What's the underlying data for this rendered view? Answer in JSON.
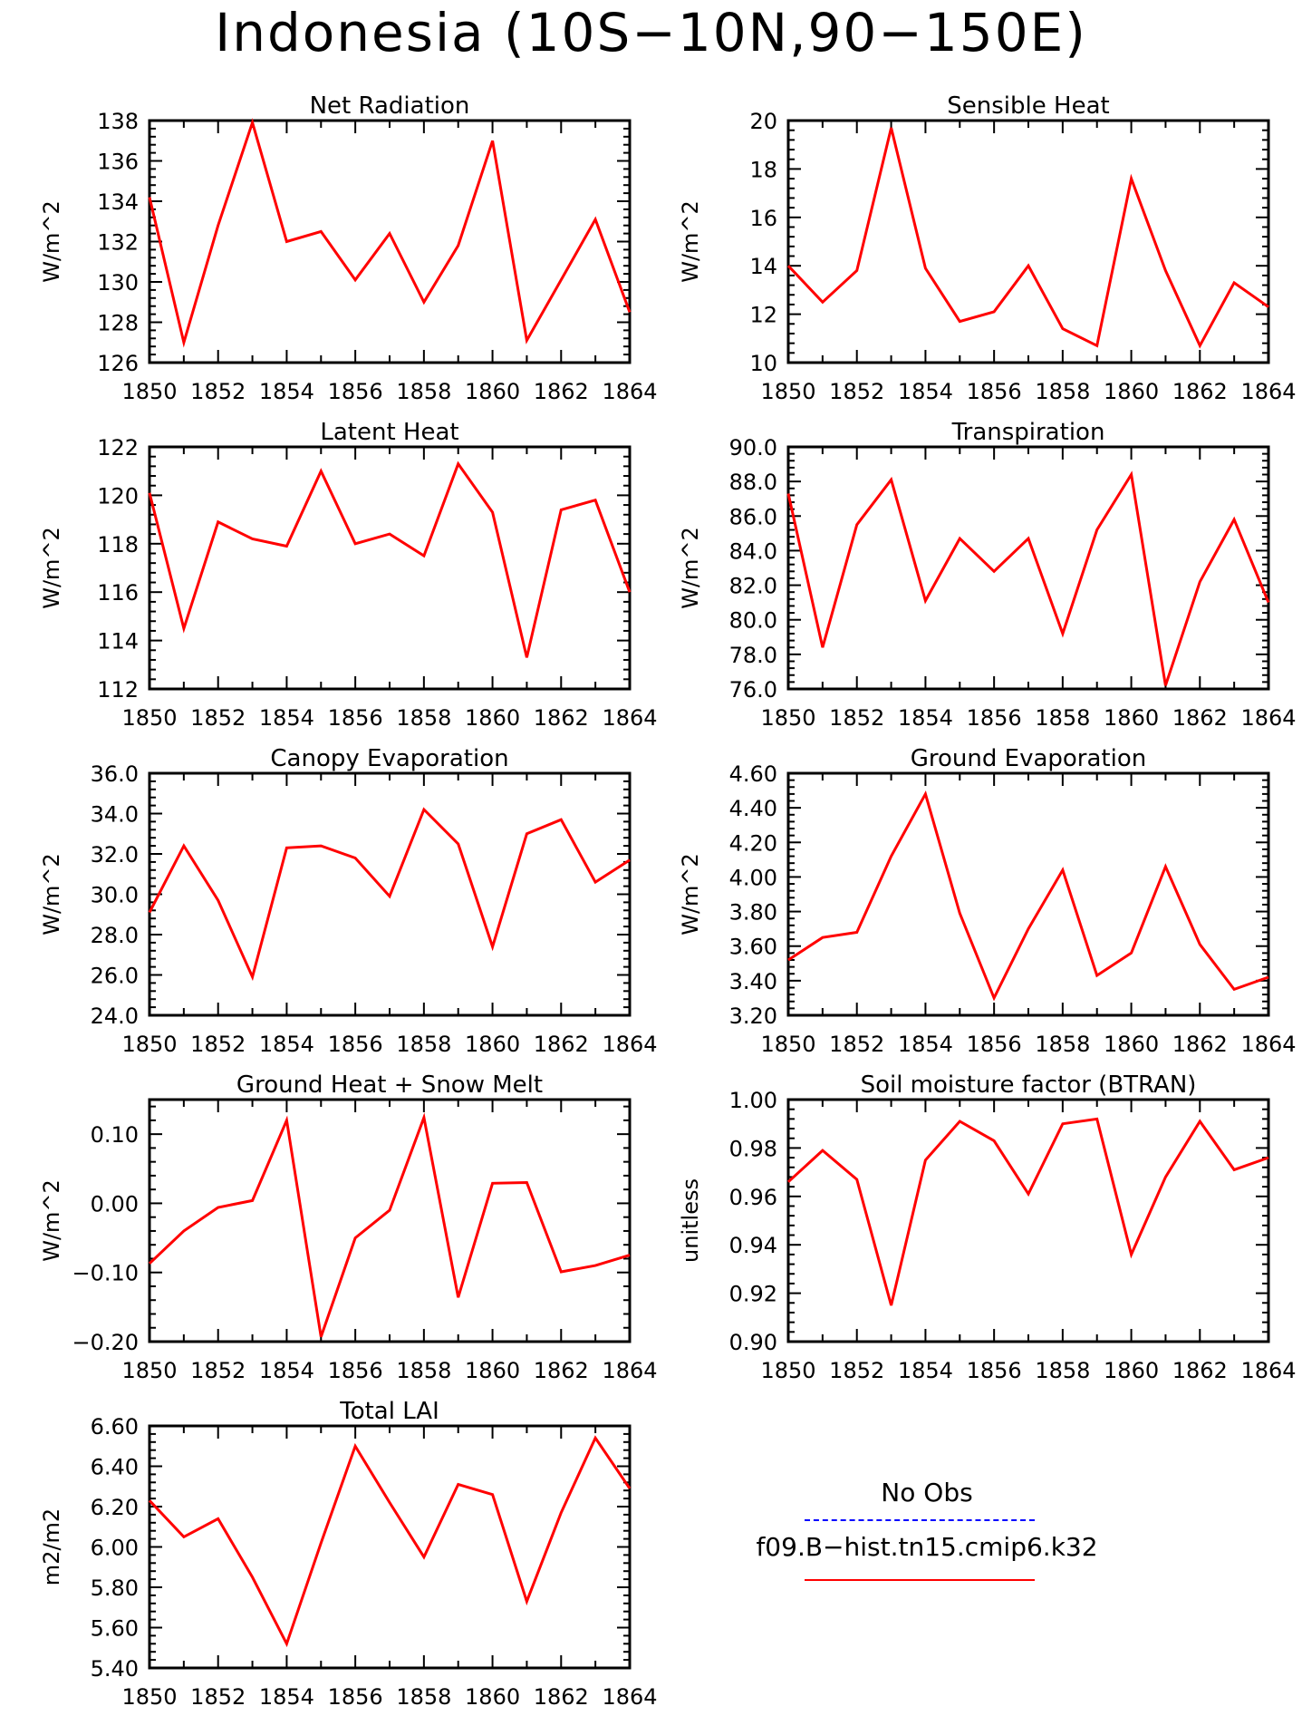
{
  "page": {
    "title": "Indonesia (10S−10N,90−150E)"
  },
  "legend": {
    "obs_label": "No Obs",
    "obs_color": "#0000ff",
    "model_label": "f09.B−hist.tn15.cmip6.k32",
    "model_color": "#ff0000"
  },
  "chart_data": [
    {
      "type": "line",
      "title": "Net Radiation",
      "xlabel": "",
      "ylabel": "W/m^2",
      "x": [
        1850,
        1851,
        1852,
        1853,
        1854,
        1855,
        1856,
        1857,
        1858,
        1859,
        1860,
        1861,
        1862,
        1863,
        1864
      ],
      "xlim": [
        1850,
        1864
      ],
      "xticks": [
        1850,
        1852,
        1854,
        1856,
        1858,
        1860,
        1862,
        1864
      ],
      "ylim": [
        126,
        138
      ],
      "yticks": [
        "126",
        "128",
        "130",
        "132",
        "134",
        "136",
        "138"
      ],
      "series": [
        {
          "values": [
            134.2,
            127.0,
            132.8,
            137.9,
            132.0,
            132.5,
            130.1,
            132.4,
            129.0,
            131.8,
            137.0,
            127.1,
            130.1,
            133.1,
            128.5
          ]
        }
      ]
    },
    {
      "type": "line",
      "title": "Sensible Heat",
      "xlabel": "",
      "ylabel": "W/m^2",
      "x": [
        1850,
        1851,
        1852,
        1853,
        1854,
        1855,
        1856,
        1857,
        1858,
        1859,
        1860,
        1861,
        1862,
        1863,
        1864
      ],
      "xlim": [
        1850,
        1864
      ],
      "xticks": [
        1850,
        1852,
        1854,
        1856,
        1858,
        1860,
        1862,
        1864
      ],
      "ylim": [
        10,
        20
      ],
      "yticks": [
        "10",
        "12",
        "14",
        "16",
        "18",
        "20"
      ],
      "series": [
        {
          "values": [
            14.0,
            12.5,
            13.8,
            19.7,
            13.9,
            11.7,
            12.1,
            14.0,
            11.4,
            10.7,
            17.6,
            13.8,
            10.7,
            13.3,
            12.3
          ]
        }
      ]
    },
    {
      "type": "line",
      "title": "Latent Heat",
      "xlabel": "",
      "ylabel": "W/m^2",
      "x": [
        1850,
        1851,
        1852,
        1853,
        1854,
        1855,
        1856,
        1857,
        1858,
        1859,
        1860,
        1861,
        1862,
        1863,
        1864
      ],
      "xlim": [
        1850,
        1864
      ],
      "xticks": [
        1850,
        1852,
        1854,
        1856,
        1858,
        1860,
        1862,
        1864
      ],
      "ylim": [
        112,
        122
      ],
      "yticks": [
        "112",
        "114",
        "116",
        "118",
        "120",
        "122"
      ],
      "series": [
        {
          "values": [
            120.1,
            114.5,
            118.9,
            118.2,
            117.9,
            121.0,
            118.0,
            118.4,
            117.5,
            121.3,
            119.3,
            113.3,
            119.4,
            119.8,
            116.0
          ]
        }
      ]
    },
    {
      "type": "line",
      "title": "Transpiration",
      "xlabel": "",
      "ylabel": "W/m^2",
      "x": [
        1850,
        1851,
        1852,
        1853,
        1854,
        1855,
        1856,
        1857,
        1858,
        1859,
        1860,
        1861,
        1862,
        1863,
        1864
      ],
      "xlim": [
        1850,
        1864
      ],
      "xticks": [
        1850,
        1852,
        1854,
        1856,
        1858,
        1860,
        1862,
        1864
      ],
      "ylim": [
        76,
        90
      ],
      "yticks": [
        "76.0",
        "78.0",
        "80.0",
        "82.0",
        "84.0",
        "86.0",
        "88.0",
        "90.0"
      ],
      "series": [
        {
          "values": [
            87.3,
            78.4,
            85.5,
            88.1,
            81.1,
            84.7,
            82.8,
            84.7,
            79.2,
            85.2,
            88.4,
            76.2,
            82.2,
            85.8,
            81.0
          ]
        }
      ]
    },
    {
      "type": "line",
      "title": "Canopy Evaporation",
      "xlabel": "",
      "ylabel": "W/m^2",
      "x": [
        1850,
        1851,
        1852,
        1853,
        1854,
        1855,
        1856,
        1857,
        1858,
        1859,
        1860,
        1861,
        1862,
        1863,
        1864
      ],
      "xlim": [
        1850,
        1864
      ],
      "xticks": [
        1850,
        1852,
        1854,
        1856,
        1858,
        1860,
        1862,
        1864
      ],
      "ylim": [
        24,
        36
      ],
      "yticks": [
        "24.0",
        "26.0",
        "28.0",
        "30.0",
        "32.0",
        "34.0",
        "36.0"
      ],
      "series": [
        {
          "values": [
            29.1,
            32.4,
            29.7,
            25.9,
            32.3,
            32.4,
            31.8,
            29.9,
            34.2,
            32.5,
            27.4,
            33.0,
            33.7,
            30.6,
            31.7
          ]
        }
      ]
    },
    {
      "type": "line",
      "title": "Ground Evaporation",
      "xlabel": "",
      "ylabel": "W/m^2",
      "x": [
        1850,
        1851,
        1852,
        1853,
        1854,
        1855,
        1856,
        1857,
        1858,
        1859,
        1860,
        1861,
        1862,
        1863,
        1864
      ],
      "xlim": [
        1850,
        1864
      ],
      "xticks": [
        1850,
        1852,
        1854,
        1856,
        1858,
        1860,
        1862,
        1864
      ],
      "ylim": [
        3.2,
        4.6
      ],
      "yticks": [
        "3.20",
        "3.40",
        "3.60",
        "3.80",
        "4.00",
        "4.20",
        "4.40",
        "4.60"
      ],
      "series": [
        {
          "values": [
            3.52,
            3.65,
            3.68,
            4.12,
            4.48,
            3.79,
            3.3,
            3.7,
            4.04,
            3.43,
            3.56,
            4.06,
            3.61,
            3.35,
            3.42
          ]
        }
      ]
    },
    {
      "type": "line",
      "title": "Ground Heat + Snow Melt",
      "xlabel": "",
      "ylabel": "W/m^2",
      "x": [
        1850,
        1851,
        1852,
        1853,
        1854,
        1855,
        1856,
        1857,
        1858,
        1859,
        1860,
        1861,
        1862,
        1863,
        1864
      ],
      "xlim": [
        1850,
        1864
      ],
      "xticks": [
        1850,
        1852,
        1854,
        1856,
        1858,
        1860,
        1862,
        1864
      ],
      "ylim": [
        -0.2,
        0.15
      ],
      "yticks": [
        "−0.20",
        "−0.10",
        "0.00",
        "0.10"
      ],
      "ytick_values": [
        -0.2,
        -0.1,
        0.0,
        0.1
      ],
      "series": [
        {
          "values": [
            -0.087,
            -0.04,
            -0.006,
            0.004,
            0.12,
            -0.193,
            -0.05,
            -0.01,
            0.124,
            -0.136,
            0.029,
            0.03,
            -0.099,
            -0.09,
            -0.075
          ]
        }
      ]
    },
    {
      "type": "line",
      "title": "Soil moisture factor (BTRAN)",
      "xlabel": "",
      "ylabel": "unitless",
      "x": [
        1850,
        1851,
        1852,
        1853,
        1854,
        1855,
        1856,
        1857,
        1858,
        1859,
        1860,
        1861,
        1862,
        1863,
        1864
      ],
      "xlim": [
        1850,
        1864
      ],
      "xticks": [
        1850,
        1852,
        1854,
        1856,
        1858,
        1860,
        1862,
        1864
      ],
      "ylim": [
        0.9,
        1.0
      ],
      "yticks": [
        "0.90",
        "0.92",
        "0.94",
        "0.96",
        "0.98",
        "1.00"
      ],
      "series": [
        {
          "values": [
            0.966,
            0.979,
            0.967,
            0.915,
            0.975,
            0.991,
            0.983,
            0.961,
            0.99,
            0.992,
            0.936,
            0.968,
            0.991,
            0.971,
            0.976
          ]
        }
      ]
    },
    {
      "type": "line",
      "title": "Total LAI",
      "xlabel": "",
      "ylabel": "m2/m2",
      "x": [
        1850,
        1851,
        1852,
        1853,
        1854,
        1855,
        1856,
        1857,
        1858,
        1859,
        1860,
        1861,
        1862,
        1863,
        1864
      ],
      "xlim": [
        1850,
        1864
      ],
      "xticks": [
        1850,
        1852,
        1854,
        1856,
        1858,
        1860,
        1862,
        1864
      ],
      "ylim": [
        5.4,
        6.6
      ],
      "yticks": [
        "5.40",
        "5.60",
        "5.80",
        "6.00",
        "6.20",
        "6.40",
        "6.60"
      ],
      "series": [
        {
          "values": [
            6.23,
            6.05,
            6.14,
            5.85,
            5.52,
            6.02,
            6.5,
            6.22,
            5.95,
            6.31,
            6.26,
            5.73,
            6.17,
            6.54,
            6.29
          ]
        }
      ]
    }
  ]
}
